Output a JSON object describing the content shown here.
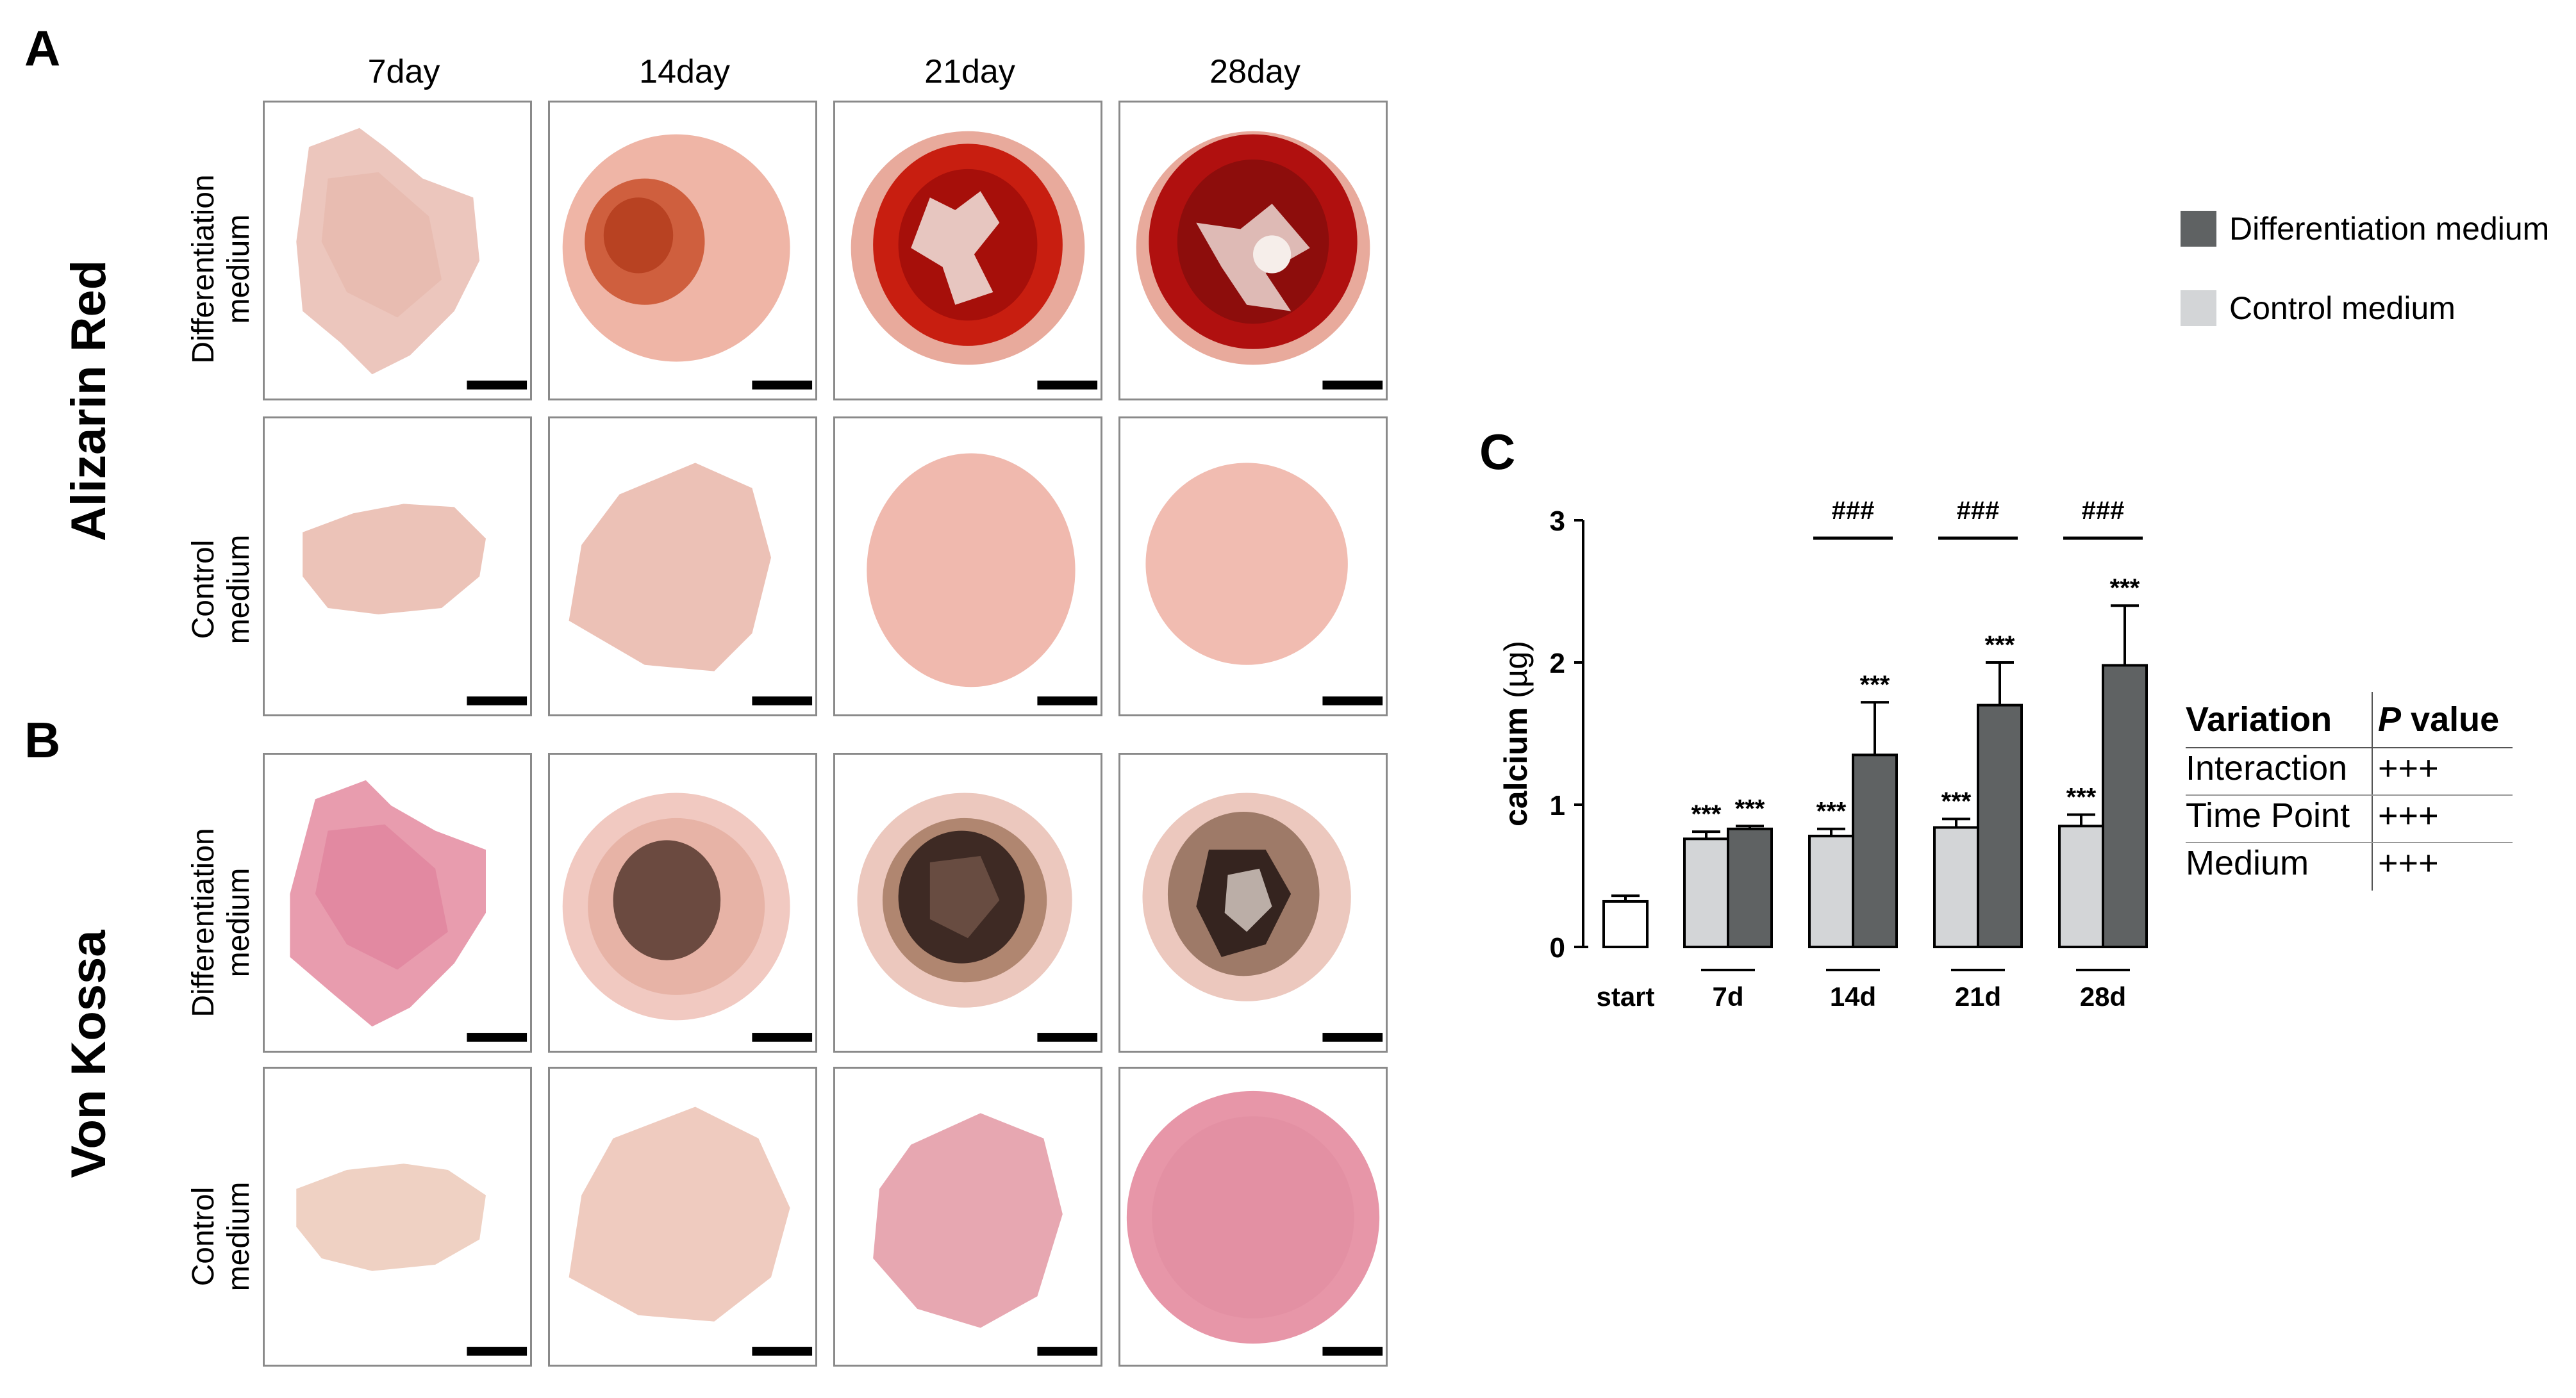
{
  "panels": {
    "a": "A",
    "b": "B",
    "c": "C"
  },
  "columns": [
    "7day",
    "14day",
    "21day",
    "28day"
  ],
  "stains": {
    "alizarin": "Alizarin Red",
    "vonkossa": "Von Kossa"
  },
  "row_labels": {
    "diff_line1": "Differentiation",
    "diff_line2": "medium",
    "ctrl_line1": "Control",
    "ctrl_line2": "medium"
  },
  "legend": {
    "diff": {
      "label": "Differentiation medium",
      "color": "#5f6263"
    },
    "ctrl": {
      "label": "Control medium",
      "color": "#d3d5d7"
    }
  },
  "stats_table": {
    "header": {
      "variation": "Variation",
      "p_italic": "P",
      "p_rest": " value"
    },
    "rows": [
      {
        "variation": "Interaction",
        "p": "+++"
      },
      {
        "variation": "Time Point",
        "p": "+++"
      },
      {
        "variation": "Medium",
        "p": "+++"
      }
    ]
  },
  "chart_data": {
    "type": "bar",
    "ylabel": "calcium",
    "ylabel_unit": " (µg)",
    "ylim": [
      0,
      3
    ],
    "yticks": [
      "0",
      "1",
      "2",
      "3"
    ],
    "start": {
      "label": "start",
      "value": 0.32,
      "error": 0.04
    },
    "categories": [
      "7d",
      "14d",
      "21d",
      "28d"
    ],
    "series": [
      {
        "name": "Control medium",
        "color": "#d3d5d7",
        "values": [
          0.76,
          0.78,
          0.84,
          0.85
        ],
        "errors": [
          0.05,
          0.05,
          0.06,
          0.08
        ],
        "sig": [
          "***",
          "***",
          "***",
          "***"
        ]
      },
      {
        "name": "Differentiation medium",
        "color": "#5f6263",
        "values": [
          0.83,
          1.35,
          1.7,
          1.98
        ],
        "errors": [
          0.02,
          0.37,
          0.3,
          0.42
        ],
        "sig": [
          "***",
          "***",
          "***",
          "***"
        ]
      }
    ],
    "pair_sig": [
      "",
      "###",
      "###",
      "###"
    ]
  }
}
